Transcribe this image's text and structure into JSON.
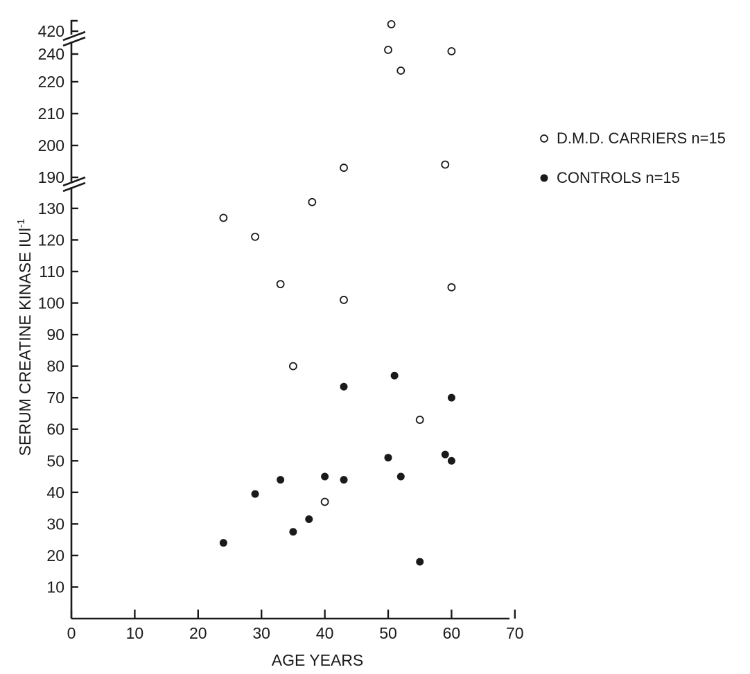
{
  "chart_data": {
    "type": "scatter",
    "xlabel": "AGE YEARS",
    "ylabel": "SERUM CREATINE KINASE IUl",
    "ylabel_superscript": "-1",
    "xlim": [
      0,
      70
    ],
    "x_ticks": [
      0,
      10,
      20,
      30,
      40,
      50,
      60,
      70
    ],
    "y_axis_segments": [
      {
        "range": [
          0,
          135
        ],
        "ticks": [
          10,
          20,
          30,
          40,
          50,
          60,
          70,
          80,
          90,
          100,
          110,
          120,
          130
        ]
      },
      {
        "range": [
          186,
          244
        ],
        "ticks": [
          190,
          200,
          210,
          220,
          240
        ]
      },
      {
        "range": [
          417,
          421
        ],
        "ticks": [
          420
        ]
      }
    ],
    "y_axis_broken": true,
    "grid": false,
    "legend_position": "right",
    "series": [
      {
        "name": "D.M.D. CARRIERS n=15",
        "marker": "open-circle",
        "points": [
          {
            "x": 24,
            "y": 127
          },
          {
            "x": 29,
            "y": 121
          },
          {
            "x": 33,
            "y": 106
          },
          {
            "x": 35,
            "y": 80
          },
          {
            "x": 38,
            "y": 132
          },
          {
            "x": 40,
            "y": 37
          },
          {
            "x": 43,
            "y": 101
          },
          {
            "x": 43,
            "y": 193
          },
          {
            "x": 50,
            "y": 243
          },
          {
            "x": 50.5,
            "y": 421
          },
          {
            "x": 52,
            "y": 228
          },
          {
            "x": 55,
            "y": 63
          },
          {
            "x": 59,
            "y": 194
          },
          {
            "x": 60,
            "y": 105
          },
          {
            "x": 60,
            "y": 242
          }
        ]
      },
      {
        "name": "CONTROLS n=15",
        "marker": "filled-circle",
        "points": [
          {
            "x": 24,
            "y": 24
          },
          {
            "x": 29,
            "y": 39.5
          },
          {
            "x": 33,
            "y": 44
          },
          {
            "x": 35,
            "y": 27.5
          },
          {
            "x": 37.5,
            "y": 31.5
          },
          {
            "x": 40,
            "y": 45
          },
          {
            "x": 43,
            "y": 44
          },
          {
            "x": 43,
            "y": 73.5
          },
          {
            "x": 50,
            "y": 51
          },
          {
            "x": 51,
            "y": 77
          },
          {
            "x": 52,
            "y": 45
          },
          {
            "x": 55,
            "y": 18
          },
          {
            "x": 59,
            "y": 52
          },
          {
            "x": 60,
            "y": 50
          },
          {
            "x": 60,
            "y": 70
          }
        ]
      }
    ]
  }
}
